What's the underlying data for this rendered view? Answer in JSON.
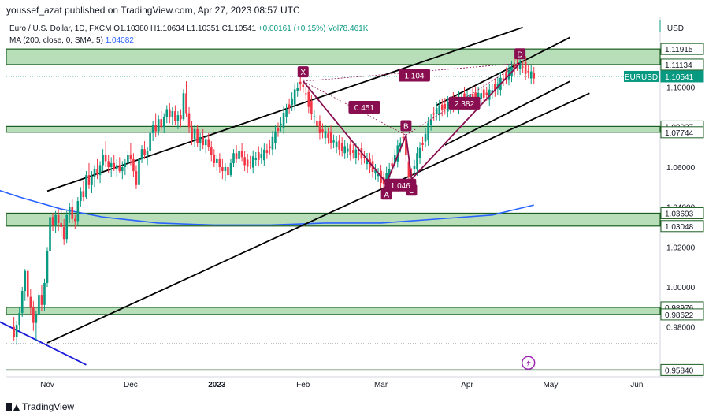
{
  "header": {
    "published_line": "youssef_azat published on TradingView.com, Apr 27, 2023 08:57 UTC"
  },
  "legend": {
    "symbol": "Euro / U.S. Dollar, 1D, FXCM",
    "open": "O1.10380",
    "high": "H1.10634",
    "low": "L1.10351",
    "close": "C1.10541",
    "change": "+0.00161 (+0.15%)",
    "volume": "Vol78.461K",
    "ma_label": "MA (200, close, 0, SMA, 5)",
    "ma_value": "1.04082"
  },
  "currency_label": "USD",
  "footer": {
    "brand": "TradingView"
  },
  "colors": {
    "up": "#089981",
    "down": "#f23645",
    "zone_fill": "#a5d6a7",
    "zone_border": "#1b5e20",
    "ma_line": "#2962ff",
    "harmonic": "#880e4f",
    "channel": "#000000",
    "trend_blue": "#1a1adb"
  },
  "chart_data": {
    "type": "candlestick",
    "ylim": [
      0.955,
      1.135
    ],
    "x_axis": {
      "ticks": [
        {
          "label": "Nov",
          "day": 10
        },
        {
          "label": "Dec",
          "day": 40
        },
        {
          "label": "2023",
          "day": 71,
          "bold": true
        },
        {
          "label": "Feb",
          "day": 102
        },
        {
          "label": "Mar",
          "day": 130
        },
        {
          "label": "Apr",
          "day": 161
        },
        {
          "label": "May",
          "day": 191
        },
        {
          "label": "Jun",
          "day": 222
        }
      ]
    },
    "y_axis": {
      "ticks": [
        "1.10000",
        "1.08000",
        "1.06000",
        "1.04000",
        "1.02000",
        "1.00000",
        "0.98000"
      ],
      "tick_values": [
        1.1,
        1.08,
        1.06,
        1.04,
        1.02,
        1.0,
        0.98
      ]
    },
    "price_labels": [
      {
        "text": "1.11915",
        "value": 1.11915,
        "style": "zone"
      },
      {
        "text": "1.11134",
        "value": 1.11134,
        "style": "zone"
      },
      {
        "text": "EURUSD",
        "value": 1.10541,
        "style": "symbol"
      },
      {
        "text": "1.10541",
        "value": 1.10541,
        "style": "current"
      },
      {
        "text": "1.08037",
        "value": 1.08037,
        "style": "zone"
      },
      {
        "text": "1.07744",
        "value": 1.07744,
        "style": "zone"
      },
      {
        "text": "1.03693",
        "value": 1.03693,
        "style": "zone"
      },
      {
        "text": "1.03048",
        "value": 1.03048,
        "style": "zone"
      },
      {
        "text": "0.98976",
        "value": 0.98976,
        "style": "zone"
      },
      {
        "text": "0.98622",
        "value": 0.98622,
        "style": "zone"
      },
      {
        "text": "0.95840",
        "value": 0.9584,
        "style": "zone"
      }
    ],
    "zones": [
      {
        "from": 1.11134,
        "to": 1.11915
      },
      {
        "from": 1.07744,
        "to": 1.08037
      },
      {
        "from": 1.03048,
        "to": 1.03693
      },
      {
        "from": 0.98622,
        "to": 0.98976
      }
    ],
    "horizontal_lines": [
      0.9584
    ],
    "candles": [
      {
        "d": -2,
        "o": 0.98,
        "h": 0.985,
        "l": 0.973,
        "c": 0.975
      },
      {
        "d": -1,
        "o": 0.975,
        "h": 0.983,
        "l": 0.971,
        "c": 0.981
      },
      {
        "d": 0,
        "o": 0.981,
        "h": 0.99,
        "l": 0.978,
        "c": 0.987
      },
      {
        "d": 1,
        "o": 0.987,
        "h": 1.0,
        "l": 0.985,
        "c": 0.998
      },
      {
        "d": 2,
        "o": 0.998,
        "h": 1.009,
        "l": 0.993,
        "c": 1.008
      },
      {
        "d": 3,
        "o": 1.008,
        "h": 1.009,
        "l": 0.993,
        "c": 0.995
      },
      {
        "d": 4,
        "o": 0.995,
        "h": 0.999,
        "l": 0.986,
        "c": 0.99
      },
      {
        "d": 5,
        "o": 0.99,
        "h": 0.993,
        "l": 0.978,
        "c": 0.982
      },
      {
        "d": 6,
        "o": 0.982,
        "h": 0.988,
        "l": 0.973,
        "c": 0.986
      },
      {
        "d": 7,
        "o": 0.986,
        "h": 0.998,
        "l": 0.984,
        "c": 0.996
      },
      {
        "d": 8,
        "o": 0.996,
        "h": 1.001,
        "l": 0.988,
        "c": 0.991
      },
      {
        "d": 9,
        "o": 0.991,
        "h": 1.004,
        "l": 0.988,
        "c": 1.002
      },
      {
        "d": 10,
        "o": 1.002,
        "h": 1.02,
        "l": 1.0,
        "c": 1.018
      },
      {
        "d": 11,
        "o": 1.018,
        "h": 1.037,
        "l": 1.016,
        "c": 1.035
      },
      {
        "d": 12,
        "o": 1.035,
        "h": 1.037,
        "l": 1.028,
        "c": 1.031
      },
      {
        "d": 13,
        "o": 1.031,
        "h": 1.038,
        "l": 1.027,
        "c": 1.036
      },
      {
        "d": 14,
        "o": 1.036,
        "h": 1.039,
        "l": 1.028,
        "c": 1.032
      },
      {
        "d": 15,
        "o": 1.032,
        "h": 1.04,
        "l": 1.025,
        "c": 1.03
      },
      {
        "d": 16,
        "o": 1.03,
        "h": 1.034,
        "l": 1.021,
        "c": 1.024
      },
      {
        "d": 17,
        "o": 1.024,
        "h": 1.038,
        "l": 1.022,
        "c": 1.036
      },
      {
        "d": 18,
        "o": 1.036,
        "h": 1.042,
        "l": 1.032,
        "c": 1.04
      },
      {
        "d": 19,
        "o": 1.04,
        "h": 1.044,
        "l": 1.032,
        "c": 1.034
      },
      {
        "d": 20,
        "o": 1.034,
        "h": 1.036,
        "l": 1.029,
        "c": 1.033
      },
      {
        "d": 21,
        "o": 1.033,
        "h": 1.045,
        "l": 1.031,
        "c": 1.043
      },
      {
        "d": 22,
        "o": 1.043,
        "h": 1.05,
        "l": 1.04,
        "c": 1.048
      },
      {
        "d": 23,
        "o": 1.048,
        "h": 1.053,
        "l": 1.043,
        "c": 1.045
      },
      {
        "d": 24,
        "o": 1.045,
        "h": 1.058,
        "l": 1.044,
        "c": 1.056
      },
      {
        "d": 25,
        "o": 1.056,
        "h": 1.062,
        "l": 1.049,
        "c": 1.051
      },
      {
        "d": 26,
        "o": 1.051,
        "h": 1.058,
        "l": 1.047,
        "c": 1.055
      },
      {
        "d": 27,
        "o": 1.055,
        "h": 1.061,
        "l": 1.05,
        "c": 1.059
      },
      {
        "d": 28,
        "o": 1.059,
        "h": 1.064,
        "l": 1.054,
        "c": 1.056
      },
      {
        "d": 29,
        "o": 1.056,
        "h": 1.063,
        "l": 1.052,
        "c": 1.061
      },
      {
        "d": 30,
        "o": 1.061,
        "h": 1.069,
        "l": 1.058,
        "c": 1.066
      },
      {
        "d": 31,
        "o": 1.066,
        "h": 1.073,
        "l": 1.06,
        "c": 1.063
      },
      {
        "d": 32,
        "o": 1.063,
        "h": 1.066,
        "l": 1.057,
        "c": 1.06
      },
      {
        "d": 33,
        "o": 1.06,
        "h": 1.065,
        "l": 1.055,
        "c": 1.062
      },
      {
        "d": 34,
        "o": 1.062,
        "h": 1.066,
        "l": 1.058,
        "c": 1.059
      },
      {
        "d": 35,
        "o": 1.059,
        "h": 1.064,
        "l": 1.055,
        "c": 1.061
      },
      {
        "d": 36,
        "o": 1.061,
        "h": 1.065,
        "l": 1.057,
        "c": 1.058
      },
      {
        "d": 37,
        "o": 1.058,
        "h": 1.063,
        "l": 1.054,
        "c": 1.06
      },
      {
        "d": 38,
        "o": 1.06,
        "h": 1.064,
        "l": 1.056,
        "c": 1.062
      },
      {
        "d": 39,
        "o": 1.062,
        "h": 1.068,
        "l": 1.059,
        "c": 1.066
      },
      {
        "d": 40,
        "o": 1.066,
        "h": 1.072,
        "l": 1.061,
        "c": 1.064
      },
      {
        "d": 41,
        "o": 1.064,
        "h": 1.067,
        "l": 1.055,
        "c": 1.058
      },
      {
        "d": 42,
        "o": 1.058,
        "h": 1.061,
        "l": 1.049,
        "c": 1.051
      },
      {
        "d": 43,
        "o": 1.051,
        "h": 1.066,
        "l": 1.05,
        "c": 1.064
      },
      {
        "d": 44,
        "o": 1.064,
        "h": 1.071,
        "l": 1.062,
        "c": 1.069
      },
      {
        "d": 45,
        "o": 1.069,
        "h": 1.073,
        "l": 1.064,
        "c": 1.066
      },
      {
        "d": 46,
        "o": 1.066,
        "h": 1.07,
        "l": 1.061,
        "c": 1.068
      },
      {
        "d": 47,
        "o": 1.068,
        "h": 1.079,
        "l": 1.066,
        "c": 1.077
      },
      {
        "d": 48,
        "o": 1.077,
        "h": 1.083,
        "l": 1.073,
        "c": 1.081
      },
      {
        "d": 49,
        "o": 1.081,
        "h": 1.087,
        "l": 1.075,
        "c": 1.078
      },
      {
        "d": 50,
        "o": 1.078,
        "h": 1.086,
        "l": 1.076,
        "c": 1.084
      },
      {
        "d": 51,
        "o": 1.084,
        "h": 1.088,
        "l": 1.078,
        "c": 1.08
      },
      {
        "d": 52,
        "o": 1.08,
        "h": 1.087,
        "l": 1.077,
        "c": 1.085
      },
      {
        "d": 53,
        "o": 1.085,
        "h": 1.091,
        "l": 1.082,
        "c": 1.089
      },
      {
        "d": 54,
        "o": 1.089,
        "h": 1.092,
        "l": 1.082,
        "c": 1.085
      },
      {
        "d": 55,
        "o": 1.085,
        "h": 1.09,
        "l": 1.081,
        "c": 1.088
      },
      {
        "d": 56,
        "o": 1.088,
        "h": 1.091,
        "l": 1.081,
        "c": 1.083
      },
      {
        "d": 57,
        "o": 1.083,
        "h": 1.088,
        "l": 1.079,
        "c": 1.086
      },
      {
        "d": 58,
        "o": 1.086,
        "h": 1.089,
        "l": 1.08,
        "c": 1.084
      },
      {
        "d": 59,
        "o": 1.084,
        "h": 1.099,
        "l": 1.083,
        "c": 1.097
      },
      {
        "d": 60,
        "o": 1.097,
        "h": 1.103,
        "l": 1.085,
        "c": 1.087
      },
      {
        "d": 61,
        "o": 1.087,
        "h": 1.09,
        "l": 1.077,
        "c": 1.08
      },
      {
        "d": 62,
        "o": 1.08,
        "h": 1.083,
        "l": 1.071,
        "c": 1.074
      },
      {
        "d": 63,
        "o": 1.074,
        "h": 1.081,
        "l": 1.07,
        "c": 1.079
      },
      {
        "d": 64,
        "o": 1.079,
        "h": 1.081,
        "l": 1.07,
        "c": 1.072
      },
      {
        "d": 65,
        "o": 1.072,
        "h": 1.077,
        "l": 1.068,
        "c": 1.075
      },
      {
        "d": 66,
        "o": 1.075,
        "h": 1.079,
        "l": 1.069,
        "c": 1.071
      },
      {
        "d": 67,
        "o": 1.071,
        "h": 1.076,
        "l": 1.067,
        "c": 1.074
      },
      {
        "d": 68,
        "o": 1.074,
        "h": 1.077,
        "l": 1.068,
        "c": 1.07
      },
      {
        "d": 69,
        "o": 1.07,
        "h": 1.073,
        "l": 1.063,
        "c": 1.066
      },
      {
        "d": 70,
        "o": 1.066,
        "h": 1.069,
        "l": 1.06,
        "c": 1.062
      },
      {
        "d": 71,
        "o": 1.062,
        "h": 1.066,
        "l": 1.058,
        "c": 1.064
      },
      {
        "d": 72,
        "o": 1.064,
        "h": 1.067,
        "l": 1.057,
        "c": 1.06
      },
      {
        "d": 73,
        "o": 1.06,
        "h": 1.064,
        "l": 1.054,
        "c": 1.058
      },
      {
        "d": 74,
        "o": 1.058,
        "h": 1.062,
        "l": 1.053,
        "c": 1.06
      },
      {
        "d": 75,
        "o": 1.06,
        "h": 1.063,
        "l": 1.054,
        "c": 1.056
      },
      {
        "d": 76,
        "o": 1.056,
        "h": 1.064,
        "l": 1.055,
        "c": 1.062
      },
      {
        "d": 77,
        "o": 1.062,
        "h": 1.069,
        "l": 1.06,
        "c": 1.067
      },
      {
        "d": 78,
        "o": 1.067,
        "h": 1.071,
        "l": 1.062,
        "c": 1.064
      },
      {
        "d": 79,
        "o": 1.064,
        "h": 1.07,
        "l": 1.062,
        "c": 1.068
      },
      {
        "d": 80,
        "o": 1.068,
        "h": 1.072,
        "l": 1.063,
        "c": 1.065
      },
      {
        "d": 81,
        "o": 1.065,
        "h": 1.068,
        "l": 1.058,
        "c": 1.061
      }
    ],
    "moving_average": {
      "name": "MA (200, close, 0, SMA, 5)",
      "points": [
        {
          "d": -28,
          "v": 1.059
        },
        {
          "d": -15,
          "v": 1.052
        },
        {
          "d": 0,
          "v": 1.045
        },
        {
          "d": 15,
          "v": 1.039
        },
        {
          "d": 30,
          "v": 1.035
        },
        {
          "d": 50,
          "v": 1.032
        },
        {
          "d": 70,
          "v": 1.031
        },
        {
          "d": 90,
          "v": 1.031
        },
        {
          "d": 110,
          "v": 1.032
        },
        {
          "d": 130,
          "v": 1.032
        },
        {
          "d": 150,
          "v": 1.034
        },
        {
          "d": 170,
          "v": 1.036
        },
        {
          "d": 185,
          "v": 1.041
        }
      ]
    },
    "channel_lines": [
      {
        "d1": 10,
        "v1": 1.048,
        "d2": 181,
        "v2": 1.13
      },
      {
        "d1": 10,
        "v1": 0.972,
        "d2": 205,
        "v2": 1.097
      },
      {
        "d1": 153,
        "v1": 1.071,
        "d2": 198,
        "v2": 1.103
      },
      {
        "d1": 150,
        "v1": 1.091,
        "d2": 198,
        "v2": 1.125
      }
    ],
    "blue_trendline": {
      "d1": -28,
      "v1": 0.997,
      "d2": 24,
      "v2": 0.961
    },
    "harmonic": {
      "points": [
        {
          "label": "X",
          "d": 102,
          "v": 1.103
        },
        {
          "label": "A",
          "d": 132,
          "v": 1.052
        },
        {
          "label": "B",
          "d": 139,
          "v": 1.076
        },
        {
          "label": "C",
          "d": 141,
          "v": 1.054
        },
        {
          "label": "D",
          "d": 180,
          "v": 1.112
        }
      ],
      "ratios": [
        {
          "text": "0.451",
          "d": 124,
          "v": 1.09
        },
        {
          "text": "1.104",
          "d": 142,
          "v": 1.106
        },
        {
          "text": "1.046",
          "d": 137,
          "v": 1.051
        },
        {
          "text": "2.382",
          "d": 160,
          "v": 1.092
        }
      ]
    },
    "marks": {
      "lightning_d": 183,
      "lightning_v": 0.962
    }
  }
}
